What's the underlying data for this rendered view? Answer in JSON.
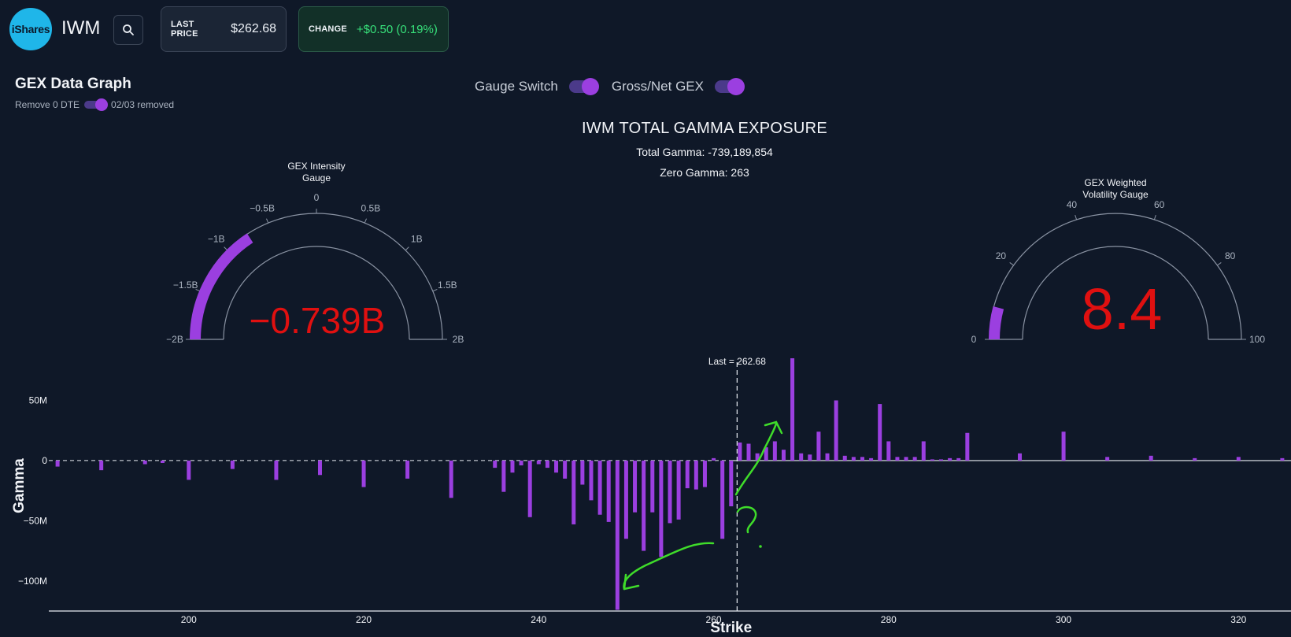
{
  "header": {
    "logo_text": "iShares",
    "ticker": "IWM",
    "last_price_label": "LAST PRICE",
    "last_price_value": "$262.68",
    "change_label": "CHANGE",
    "change_value": "+$0.50 (0.19%)",
    "search_icon": "search-icon"
  },
  "panel": {
    "title": "GEX Data Graph",
    "remove_label": "Remove 0 DTE",
    "removed_text": "02/03 removed",
    "gauge_switch_label": "Gauge Switch",
    "gross_net_label": "Gross/Net GEX"
  },
  "chart_header": {
    "title": "IWM TOTAL GAMMA EXPOSURE",
    "total_gamma": "Total Gamma: -739,189,854",
    "zero_gamma": "Zero Gamma: 263"
  },
  "gauge_intensity": {
    "title_line1": "GEX Intensity",
    "title_line2": "Gauge",
    "value": -0.739,
    "value_text": "−0.739B",
    "min": -2,
    "max": 2,
    "ticks": [
      "−2B",
      "−1.5B",
      "−1B",
      "−0.5B",
      "0",
      "0.5B",
      "1B",
      "1.5B",
      "2B"
    ]
  },
  "gauge_vol": {
    "title_line1": "GEX Weighted",
    "title_line2": "Volatility Gauge",
    "value": 8.4,
    "value_text": "8.4",
    "min": 0,
    "max": 100,
    "ticks": [
      "0",
      "20",
      "40",
      "60",
      "80",
      "100"
    ]
  },
  "colors": {
    "bar": "#9b3fe0",
    "gauge_value": "#e01010",
    "annotation": "#3fdc2a"
  },
  "chart_data": {
    "type": "bar",
    "xlabel": "Strike",
    "ylabel": "Gamma",
    "xlim": [
      184,
      326
    ],
    "ylim": [
      -125,
      85
    ],
    "x_ticks": [
      "200",
      "220",
      "240",
      "260",
      "280",
      "300",
      "320"
    ],
    "y_ticks": [
      "50M",
      "0",
      "−50M",
      "−100M"
    ],
    "last_label": "Last = 262.68",
    "last_value": 262.68,
    "series": [
      {
        "x": [
          185,
          190,
          195,
          197,
          200,
          205,
          210,
          215,
          220,
          225,
          230,
          235,
          236,
          237,
          238,
          239,
          240,
          241,
          242,
          243,
          244,
          245,
          246,
          247,
          248,
          249,
          250,
          251,
          252,
          253,
          254,
          255,
          256,
          257,
          258,
          259,
          260,
          261,
          262,
          263,
          264,
          265,
          266,
          267,
          268,
          269,
          270,
          271,
          272,
          273,
          274,
          275,
          276,
          277,
          278,
          279,
          280,
          281,
          282,
          283,
          284,
          285,
          286,
          287,
          288,
          289,
          290,
          295,
          300,
          305,
          310,
          315,
          320,
          325
        ],
        "values": [
          -5,
          -8,
          -3,
          -2,
          -16,
          -7,
          -16,
          -12,
          -22,
          -15,
          -31,
          -6,
          -26,
          -10,
          -4,
          -47,
          -3,
          -6,
          -10,
          -15,
          -53,
          -20,
          -33,
          -45,
          -51,
          -124,
          -65,
          -43,
          -75,
          -43,
          -80,
          -52,
          -49,
          -23,
          -24,
          -22,
          2,
          -65,
          -38,
          15,
          14,
          6,
          11,
          16,
          9,
          85,
          6,
          5,
          24,
          6,
          50,
          4,
          3,
          3,
          2,
          47,
          16,
          3,
          3,
          3,
          16,
          1,
          1,
          2,
          2,
          23,
          0,
          6,
          24,
          3,
          4,
          2,
          3,
          2
        ]
      }
    ]
  }
}
